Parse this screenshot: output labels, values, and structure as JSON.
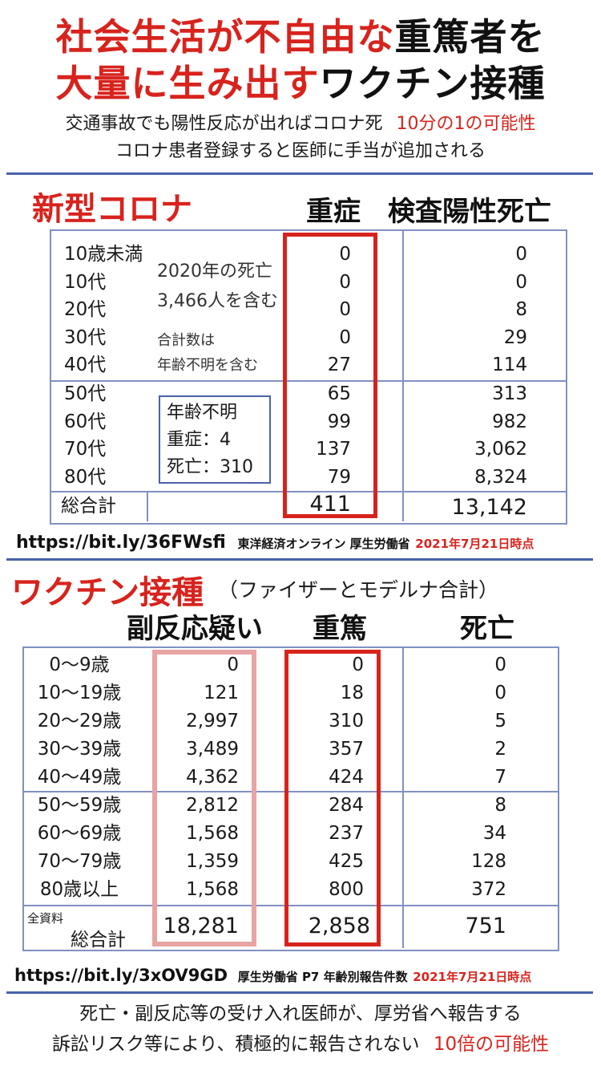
{
  "header": {
    "title_line1_red": "社会生活が不自由な",
    "title_line1_black": "重篤者を",
    "title_line2_red": "大量に生み出す",
    "title_line2_black": "ワクチン接種",
    "sub1_black": "交通事故でも陽性反応が出ればコロナ死",
    "sub1_red": "10分の1の可能性",
    "sub2": "コロナ患者登録すると医師に手当が追加される"
  },
  "covid": {
    "section_title": "新型コロナ",
    "col_severe": "重症",
    "col_death": "検査陽性死亡",
    "rows": [
      {
        "age": "10歳未満",
        "severe": "0",
        "death": "0"
      },
      {
        "age": "10代",
        "severe": "0",
        "death": "0"
      },
      {
        "age": "20代",
        "severe": "0",
        "death": "8"
      },
      {
        "age": "30代",
        "severe": "0",
        "death": "29"
      },
      {
        "age": "40代",
        "severe": "27",
        "death": "114"
      },
      {
        "age": "50代",
        "severe": "65",
        "death": "313"
      },
      {
        "age": "60代",
        "severe": "99",
        "death": "982"
      },
      {
        "age": "70代",
        "severe": "137",
        "death": "3,062"
      },
      {
        "age": "80代",
        "severe": "79",
        "death": "8,324"
      }
    ],
    "total_label": "総合計",
    "total_severe": "411",
    "total_death": "13,142",
    "note1": "2020年の死亡",
    "note2": "3,466人を含む",
    "note3": "合計数は",
    "note4": "年齢不明を含む",
    "unknown_title": "年齢不明",
    "unknown_severe": "重症：4",
    "unknown_death": "死亡：310",
    "source_url": "https://bit.ly/36FWsfi",
    "source_text": "東洋経済オンライン 厚生労働省",
    "source_date": "2021年7月21日時点"
  },
  "vaccine": {
    "section_title": "ワクチン接種",
    "section_sub": "（ファイザーとモデルナ合計）",
    "col_side": "副反応疑い",
    "col_serious": "重篤",
    "col_death": "死亡",
    "rows": [
      {
        "age": "0～9歳",
        "side": "0",
        "serious": "0",
        "death": "0"
      },
      {
        "age": "10～19歳",
        "side": "121",
        "serious": "18",
        "death": "0"
      },
      {
        "age": "20～29歳",
        "side": "2,997",
        "serious": "310",
        "death": "5"
      },
      {
        "age": "30～39歳",
        "side": "3,489",
        "serious": "357",
        "death": "2"
      },
      {
        "age": "40～49歳",
        "side": "4,362",
        "serious": "424",
        "death": "7"
      },
      {
        "age": "50～59歳",
        "side": "2,812",
        "serious": "284",
        "death": "8"
      },
      {
        "age": "60～69歳",
        "side": "1,568",
        "serious": "237",
        "death": "34"
      },
      {
        "age": "70～79歳",
        "side": "1,359",
        "serious": "425",
        "death": "128"
      },
      {
        "age": "80歳以上",
        "side": "1,568",
        "serious": "800",
        "death": "372"
      }
    ],
    "total_small": "全資料",
    "total_label": "総合計",
    "total_side": "18,281",
    "total_serious": "2,858",
    "total_death": "751",
    "source_url": "https://bit.ly/3xOV9GD",
    "source_text": "厚生労働省 P7 年齢別報告件数",
    "source_date": "2021年7月21日時点"
  },
  "footer": {
    "line1": "死亡・副反応等の受け入れ医師が、厚労省へ報告する",
    "line2_black": "訴訟リスク等により、積極的に報告されない",
    "line2_red": "10倍の可能性"
  },
  "colors": {
    "accent_red": "#d8231d",
    "pink_box": "#e8a3a3",
    "table_blue": "#8190c4",
    "bar_blue": "#4a62a8"
  }
}
